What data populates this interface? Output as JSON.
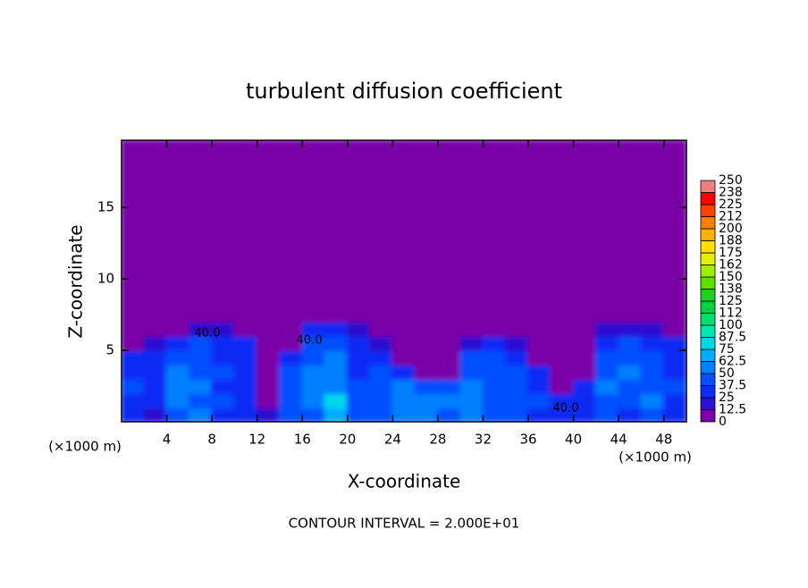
{
  "chart_data": {
    "type": "heatmap",
    "title": "turbulent diffusion coefficient",
    "x_label": "X-coordinate",
    "y_label": "Z-coordinate",
    "x_unit": "(×1000 m)",
    "y_unit": "(×1000 m)",
    "footer": "CONTOUR INTERVAL = 2.000E+01",
    "annotations": [
      "40.0",
      "40.0",
      "40.0"
    ],
    "xlim": [
      0,
      50
    ],
    "ylim": [
      0,
      19.7
    ],
    "xticks": [
      4,
      8,
      12,
      16,
      20,
      24,
      28,
      32,
      36,
      40,
      44,
      48
    ],
    "yticks": [
      5,
      10,
      15
    ],
    "x_edges": [
      0,
      2,
      4,
      6,
      8,
      10,
      12,
      14,
      16,
      18,
      20,
      22,
      24,
      26,
      28,
      30,
      32,
      34,
      36,
      38,
      40,
      42,
      44,
      46,
      48,
      50
    ],
    "y_edges": [
      0,
      1,
      2,
      3,
      4,
      5,
      6,
      7,
      19.7
    ],
    "z": [
      [
        30,
        20,
        45,
        50,
        35,
        30,
        20,
        40,
        45,
        70,
        40,
        45,
        55,
        55,
        45,
        50,
        45,
        40,
        35,
        30,
        30,
        40,
        35,
        45,
        30
      ],
      [
        35,
        30,
        50,
        45,
        40,
        30,
        5,
        45,
        50,
        80,
        45,
        40,
        60,
        55,
        50,
        55,
        40,
        45,
        40,
        30,
        35,
        45,
        40,
        50,
        35
      ],
      [
        40,
        35,
        55,
        50,
        35,
        35,
        5,
        40,
        55,
        60,
        40,
        45,
        50,
        45,
        40,
        50,
        45,
        40,
        35,
        5,
        30,
        50,
        40,
        45,
        40
      ],
      [
        30,
        35,
        50,
        45,
        40,
        30,
        5,
        45,
        50,
        55,
        35,
        40,
        30,
        10,
        10,
        45,
        45,
        40,
        30,
        5,
        5,
        45,
        50,
        40,
        35
      ],
      [
        30,
        30,
        45,
        40,
        35,
        30,
        5,
        30,
        45,
        50,
        35,
        30,
        5,
        5,
        5,
        40,
        40,
        35,
        5,
        5,
        5,
        40,
        45,
        40,
        30
      ],
      [
        10,
        15,
        35,
        40,
        35,
        30,
        5,
        10,
        45,
        45,
        35,
        15,
        5,
        5,
        5,
        15,
        35,
        15,
        5,
        5,
        5,
        35,
        40,
        35,
        30
      ],
      [
        5,
        5,
        5,
        15,
        15,
        5,
        5,
        5,
        35,
        35,
        15,
        5,
        5,
        5,
        5,
        5,
        5,
        5,
        5,
        5,
        5,
        15,
        15,
        15,
        5
      ],
      [
        0,
        0,
        0,
        0,
        0,
        0,
        0,
        0,
        0,
        0,
        0,
        0,
        0,
        0,
        0,
        0,
        0,
        0,
        0,
        0,
        0,
        0,
        0,
        0,
        0
      ]
    ],
    "colorbar": {
      "levels": [
        0,
        12.5,
        25,
        37.5,
        50,
        62.5,
        75,
        87.5,
        100,
        {
          "value": 112.5,
          "label": "112"
        },
        125,
        {
          "value": 137.5,
          "label": "138"
        },
        150,
        {
          "value": 162.5,
          "label": "162"
        },
        175,
        {
          "value": 187.5,
          "label": "188"
        },
        200,
        {
          "value": 212.5,
          "label": "212"
        },
        225,
        {
          "value": 237.5,
          "label": "238"
        },
        250
      ],
      "colors": [
        "#7a00a8",
        "#2a10d0",
        "#0a2cf5",
        "#0050ff",
        "#0080ff",
        "#00acff",
        "#00d8e8",
        "#00e8b0",
        "#00e070",
        "#00d040",
        "#20d020",
        "#60e000",
        "#a0ee00",
        "#e0f000",
        "#ffe000",
        "#ffb000",
        "#ff8000",
        "#ff4000",
        "#ff0000",
        "#f08080"
      ]
    }
  }
}
